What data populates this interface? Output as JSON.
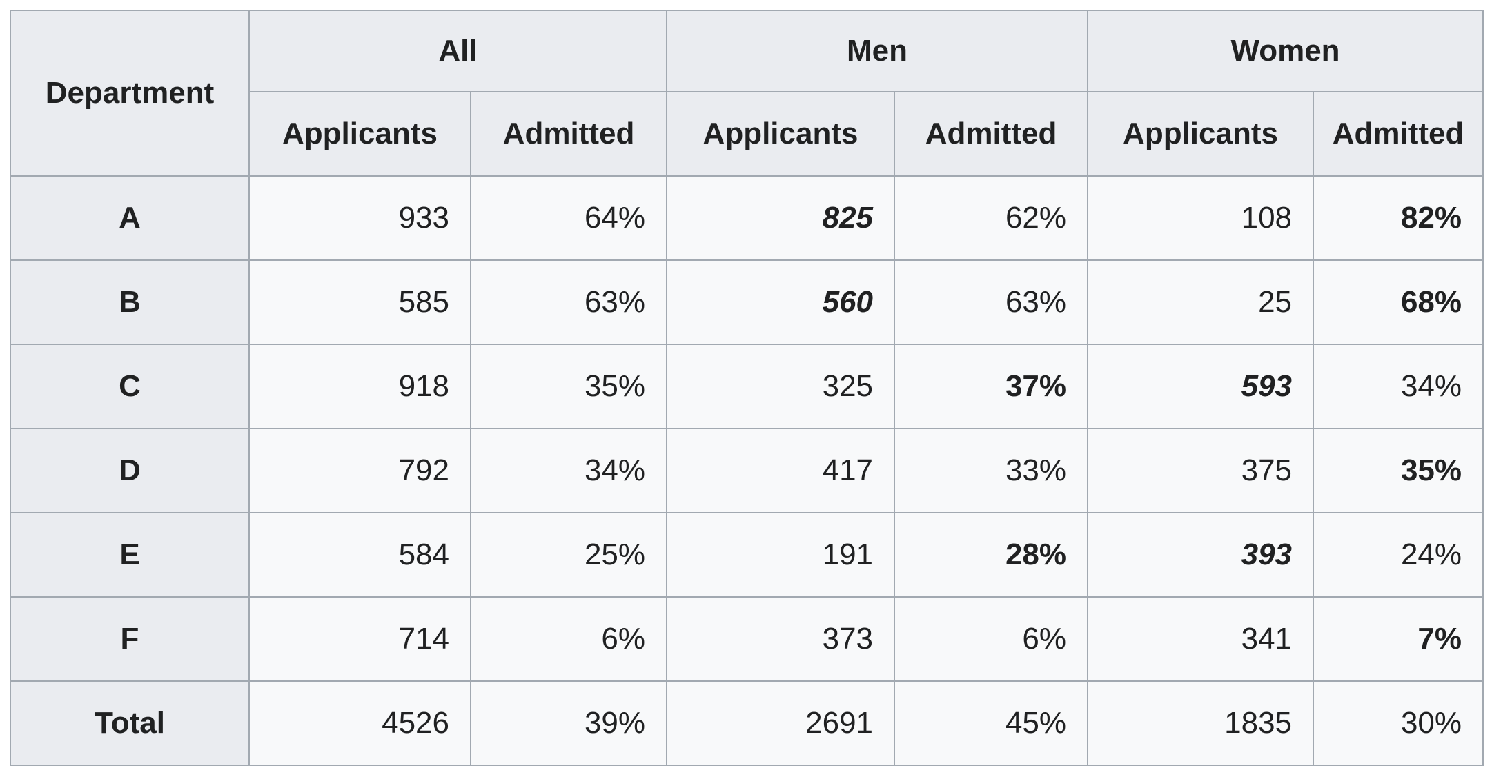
{
  "colors": {
    "border": "#a2a9b1",
    "header_background": "#eaecf0",
    "cell_background": "#f8f9fa",
    "text": "#202122",
    "page_background": "#ffffff"
  },
  "table": {
    "corner_header": "Department",
    "group_headers": {
      "all": "All",
      "men": "Men",
      "women": "Women"
    },
    "subheaders": [
      "Applicants",
      "Admitted",
      "Applicants",
      "Admitted",
      "Applicants",
      "Admitted"
    ],
    "rows": [
      {
        "department": "A",
        "cells": [
          {
            "text": "933",
            "emphasis": "none"
          },
          {
            "text": "64%",
            "emphasis": "none"
          },
          {
            "text": "825",
            "emphasis": "bold-italic"
          },
          {
            "text": "62%",
            "emphasis": "none"
          },
          {
            "text": "108",
            "emphasis": "none"
          },
          {
            "text": "82%",
            "emphasis": "bold"
          }
        ]
      },
      {
        "department": "B",
        "cells": [
          {
            "text": "585",
            "emphasis": "none"
          },
          {
            "text": "63%",
            "emphasis": "none"
          },
          {
            "text": "560",
            "emphasis": "bold-italic"
          },
          {
            "text": "63%",
            "emphasis": "none"
          },
          {
            "text": "25",
            "emphasis": "none"
          },
          {
            "text": "68%",
            "emphasis": "bold"
          }
        ]
      },
      {
        "department": "C",
        "cells": [
          {
            "text": "918",
            "emphasis": "none"
          },
          {
            "text": "35%",
            "emphasis": "none"
          },
          {
            "text": "325",
            "emphasis": "none"
          },
          {
            "text": "37%",
            "emphasis": "bold"
          },
          {
            "text": "593",
            "emphasis": "bold-italic"
          },
          {
            "text": "34%",
            "emphasis": "none"
          }
        ]
      },
      {
        "department": "D",
        "cells": [
          {
            "text": "792",
            "emphasis": "none"
          },
          {
            "text": "34%",
            "emphasis": "none"
          },
          {
            "text": "417",
            "emphasis": "none"
          },
          {
            "text": "33%",
            "emphasis": "none"
          },
          {
            "text": "375",
            "emphasis": "none"
          },
          {
            "text": "35%",
            "emphasis": "bold"
          }
        ]
      },
      {
        "department": "E",
        "cells": [
          {
            "text": "584",
            "emphasis": "none"
          },
          {
            "text": "25%",
            "emphasis": "none"
          },
          {
            "text": "191",
            "emphasis": "none"
          },
          {
            "text": "28%",
            "emphasis": "bold"
          },
          {
            "text": "393",
            "emphasis": "bold-italic"
          },
          {
            "text": "24%",
            "emphasis": "none"
          }
        ]
      },
      {
        "department": "F",
        "cells": [
          {
            "text": "714",
            "emphasis": "none"
          },
          {
            "text": "6%",
            "emphasis": "none"
          },
          {
            "text": "373",
            "emphasis": "none"
          },
          {
            "text": "6%",
            "emphasis": "none"
          },
          {
            "text": "341",
            "emphasis": "none"
          },
          {
            "text": "7%",
            "emphasis": "bold"
          }
        ]
      },
      {
        "department": "Total",
        "cells": [
          {
            "text": "4526",
            "emphasis": "none"
          },
          {
            "text": "39%",
            "emphasis": "none"
          },
          {
            "text": "2691",
            "emphasis": "none"
          },
          {
            "text": "45%",
            "emphasis": "none"
          },
          {
            "text": "1835",
            "emphasis": "none"
          },
          {
            "text": "30%",
            "emphasis": "none"
          }
        ]
      }
    ]
  },
  "chart_data": {
    "type": "table",
    "column_groups": [
      "Department",
      "All",
      "Men",
      "Women"
    ],
    "columns": [
      "Department",
      "All Applicants",
      "All Admitted",
      "Men Applicants",
      "Men Admitted",
      "Women Applicants",
      "Women Admitted"
    ],
    "rows": [
      [
        "A",
        933,
        "64%",
        825,
        "62%",
        108,
        "82%"
      ],
      [
        "B",
        585,
        "63%",
        560,
        "63%",
        25,
        "68%"
      ],
      [
        "C",
        918,
        "35%",
        325,
        "37%",
        593,
        "34%"
      ],
      [
        "D",
        792,
        "34%",
        417,
        "33%",
        375,
        "35%"
      ],
      [
        "E",
        584,
        "25%",
        191,
        "28%",
        393,
        "24%"
      ],
      [
        "F",
        714,
        "6%",
        373,
        "6%",
        341,
        "7%"
      ],
      [
        "Total",
        4526,
        "39%",
        2691,
        "45%",
        1835,
        "30%"
      ]
    ],
    "emphasis": {
      "bold_italic_cells": "larger applicant pool per row gender comparison: Men A 825, Men B 560, Women C 593, Women E 393",
      "bold_cells": "higher admit rate per row gender comparison: Women A 82%, Women B 68%, Men C 37%, Women D 35%, Men E 28%, Women F 7%"
    },
    "layout": "two header rows; Department spans both; All/Men/Women each span Applicants+Admitted subcolumns; numeric cells right-aligned; header and first column shaded gray"
  }
}
